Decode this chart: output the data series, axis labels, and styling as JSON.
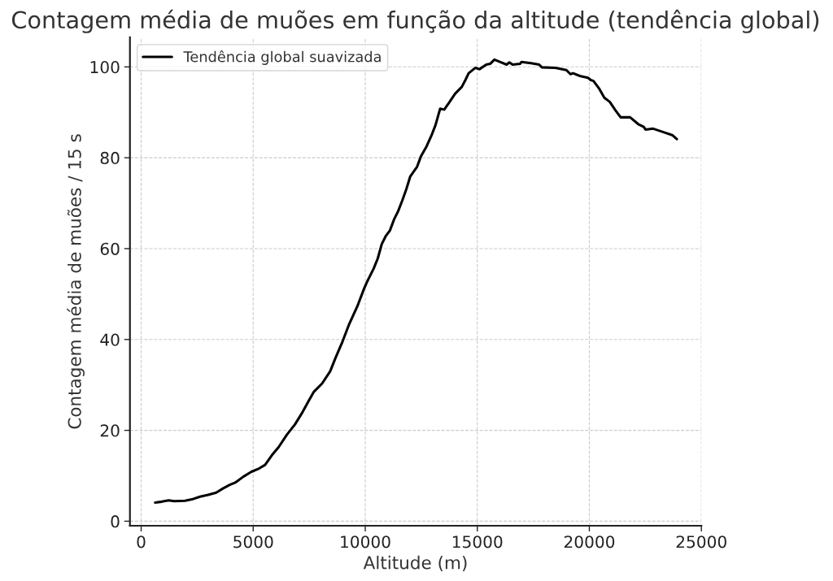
{
  "chart_data": {
    "type": "line",
    "title": "Contagem média de muões em função da altitude (tendência global)",
    "xlabel": "Altitude (m)",
    "ylabel": "Contagem média de muões / 15 s",
    "series": [
      {
        "name": "Tendência global suavizada",
        "color": "#000000",
        "x": [
          625,
          927,
          1230,
          1472,
          1956,
          2260,
          2623,
          2987,
          3350,
          3652,
          3955,
          4197,
          4560,
          4924,
          5262,
          5530,
          5832,
          6135,
          6498,
          6862,
          7164,
          7467,
          7709,
          8073,
          8436,
          8678,
          8982,
          9284,
          9647,
          9949,
          10072,
          10193,
          10374,
          10556,
          10737,
          10919,
          11101,
          11283,
          11464,
          11646,
          11828,
          12010,
          12311,
          12493,
          12736,
          12980,
          13136,
          13256,
          13343,
          13524,
          13765,
          14008,
          14310,
          14469,
          14614,
          14916,
          15098,
          15400,
          15582,
          15764,
          16006,
          16309,
          16430,
          16575,
          16914,
          16974,
          17398,
          17761,
          17882,
          18487,
          18976,
          19155,
          19276,
          19579,
          19942,
          20064,
          20185,
          20427,
          20669,
          20912,
          21155,
          21397,
          21820,
          22184,
          22426,
          22510,
          22849,
          23334,
          23697,
          23903
        ],
        "values": [
          4.1,
          4.3,
          4.6,
          4.4,
          4.5,
          4.8,
          5.4,
          5.8,
          6.3,
          7.2,
          8.0,
          8.5,
          9.8,
          10.9,
          11.6,
          12.4,
          14.5,
          16.3,
          19.0,
          21.3,
          23.7,
          26.4,
          28.5,
          30.3,
          33.0,
          36.0,
          39.5,
          43.4,
          47.3,
          51.2,
          52.6,
          53.8,
          55.6,
          57.8,
          61.0,
          62.8,
          64.0,
          66.4,
          68.2,
          70.5,
          73.0,
          75.9,
          78.0,
          80.4,
          82.5,
          85.2,
          87.2,
          89.3,
          90.8,
          90.6,
          92.3,
          94.1,
          95.6,
          97.1,
          98.6,
          99.8,
          99.5,
          100.5,
          100.7,
          101.6,
          101.1,
          100.5,
          101.0,
          100.5,
          100.7,
          101.1,
          100.8,
          100.5,
          99.9,
          99.8,
          99.3,
          98.4,
          98.6,
          98.0,
          97.6,
          97.1,
          96.9,
          95.3,
          93.2,
          92.3,
          90.5,
          88.9,
          88.9,
          87.4,
          86.8,
          86.2,
          86.4,
          85.6,
          85.0,
          84.1
        ]
      }
    ],
    "xlim": [
      -500,
      25000
    ],
    "ylim": [
      -1,
      106.5
    ],
    "xticks": [
      0,
      5000,
      10000,
      15000,
      20000,
      25000
    ],
    "yticks": [
      0,
      20,
      40,
      60,
      80,
      100
    ],
    "grid": true,
    "legend": "top left",
    "line_style": "solid"
  }
}
